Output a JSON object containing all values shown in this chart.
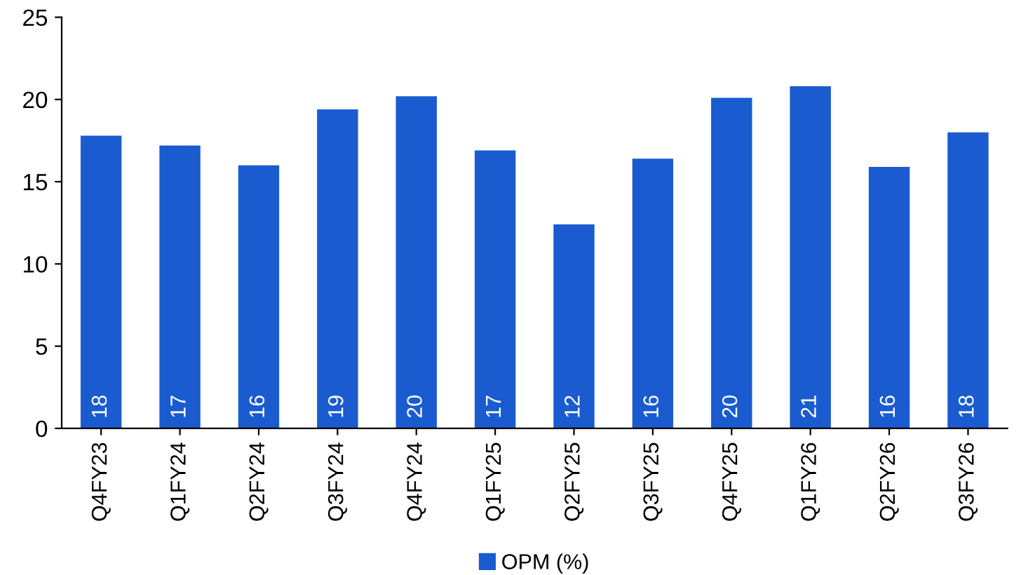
{
  "chart_data": {
    "type": "bar",
    "categories": [
      "Q4FY23",
      "Q1FY24",
      "Q2FY24",
      "Q3FY24",
      "Q4FY24",
      "Q1FY25",
      "Q2FY25",
      "Q3FY25",
      "Q4FY25",
      "Q1FY26",
      "Q2FY26",
      "Q3FY26"
    ],
    "series": [
      {
        "name": "OPM (%)",
        "color": "#1a5ccf",
        "values": [
          17.8,
          17.2,
          16.0,
          19.4,
          20.2,
          16.9,
          12.4,
          16.4,
          20.1,
          20.8,
          15.9,
          18.0
        ],
        "value_labels": [
          "18",
          "17",
          "16",
          "19",
          "20",
          "17",
          "12",
          "16",
          "20",
          "21",
          "16",
          "18"
        ]
      }
    ],
    "ylim": [
      0,
      25
    ],
    "yticks": [
      0,
      5,
      10,
      15,
      20,
      25
    ],
    "grid": false,
    "legend": "bottom"
  }
}
